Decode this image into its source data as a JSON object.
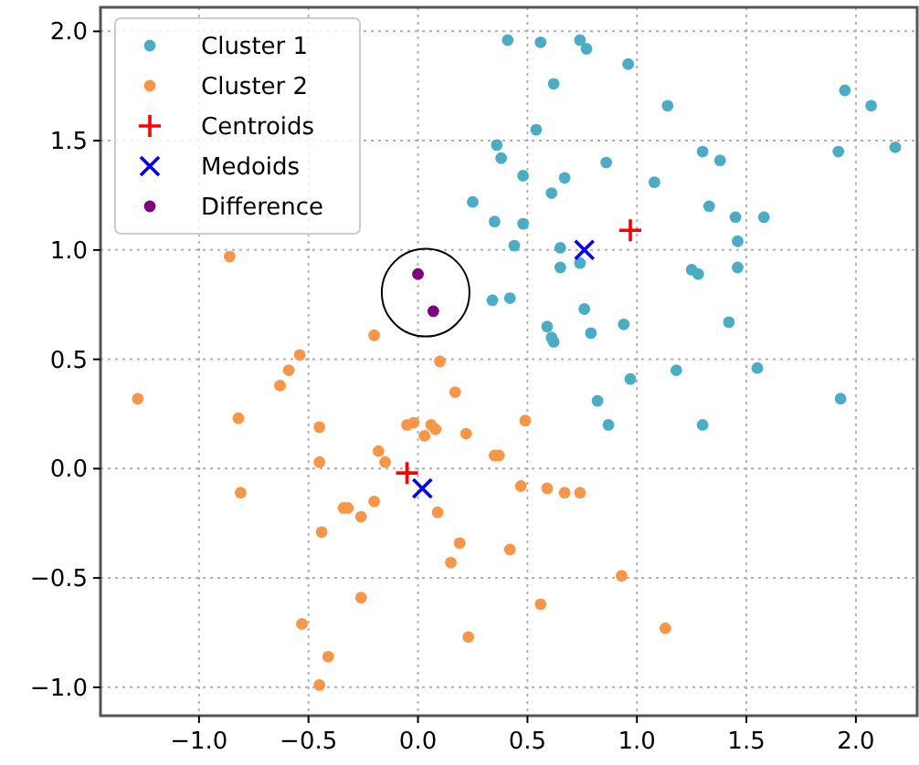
{
  "chart_data": {
    "type": "scatter",
    "xlim": [
      -1.45,
      2.28
    ],
    "ylim": [
      -1.13,
      2.11
    ],
    "xticks": [
      {
        "value": -1,
        "label": "−1.0"
      },
      {
        "value": -0.5,
        "label": "−0.5"
      },
      {
        "value": 0,
        "label": "0.0"
      },
      {
        "value": 0.5,
        "label": "0.5"
      },
      {
        "value": 1,
        "label": "1.0"
      },
      {
        "value": 1.5,
        "label": "1.5"
      },
      {
        "value": 2,
        "label": "2.0"
      }
    ],
    "yticks": [
      {
        "value": -1,
        "label": "−1.0"
      },
      {
        "value": -0.5,
        "label": "−0.5"
      },
      {
        "value": 0,
        "label": "0.0"
      },
      {
        "value": 0.5,
        "label": "0.5"
      },
      {
        "value": 1,
        "label": "1.0"
      },
      {
        "value": 1.5,
        "label": "1.5"
      },
      {
        "value": 2,
        "label": "2.0"
      }
    ],
    "grid": true,
    "legend": "top left",
    "series": [
      {
        "name": "Cluster 1",
        "color": "#4bacc6",
        "marker": "circle",
        "x": [
          0.41,
          0.56,
          0.74,
          0.77,
          0.96,
          0.62,
          1.95,
          2.07,
          1.14,
          0.54,
          0.36,
          0.38,
          1.3,
          1.38,
          1.92,
          2.18,
          0.86,
          0.48,
          0.67,
          1.08,
          0.61,
          1.33,
          1.45,
          1.58,
          0.35,
          0.48,
          1.46,
          0.44,
          0.65,
          0.74,
          0.65,
          1.46,
          1.25,
          1.28,
          0.42,
          0.34,
          0.76,
          0.59,
          0.61,
          0.62,
          0.79,
          0.94,
          1.42,
          0.82,
          0.97,
          1.18,
          1.55,
          0.87,
          1.3,
          1.93,
          0.25
        ],
        "values": [
          1.96,
          1.95,
          1.96,
          1.92,
          1.85,
          1.76,
          1.73,
          1.66,
          1.66,
          1.55,
          1.48,
          1.42,
          1.45,
          1.41,
          1.45,
          1.47,
          1.4,
          1.34,
          1.33,
          1.31,
          1.26,
          1.2,
          1.15,
          1.15,
          1.13,
          1.12,
          1.04,
          1.02,
          1.01,
          0.94,
          0.92,
          0.92,
          0.91,
          0.89,
          0.78,
          0.77,
          0.73,
          0.65,
          0.6,
          0.58,
          0.62,
          0.66,
          0.67,
          0.31,
          0.41,
          0.45,
          0.46,
          0.2,
          0.2,
          0.32,
          1.22
        ]
      },
      {
        "name": "Cluster 2",
        "color": "#f79646",
        "marker": "circle",
        "x": [
          -0.86,
          -0.2,
          -0.54,
          0.1,
          -0.59,
          -0.63,
          -1.28,
          0.17,
          -0.82,
          -0.45,
          -0.05,
          -0.02,
          0.06,
          0.08,
          0.03,
          0.22,
          -0.18,
          -0.15,
          -0.45,
          -0.81,
          -0.34,
          -0.32,
          -0.2,
          -0.26,
          0.09,
          -0.44,
          0.19,
          0.15,
          -0.26,
          -0.53,
          0.23,
          -0.41,
          -0.45,
          0.42,
          0.35,
          0.37,
          0.49,
          0.47,
          0.59,
          0.67,
          0.74,
          0.93,
          0.56,
          1.13
        ],
        "values": [
          0.97,
          0.61,
          0.52,
          0.49,
          0.45,
          0.38,
          0.32,
          0.35,
          0.23,
          0.19,
          0.2,
          0.21,
          0.2,
          0.18,
          0.15,
          0.16,
          0.08,
          0.03,
          0.03,
          -0.11,
          -0.18,
          -0.18,
          -0.15,
          -0.22,
          -0.2,
          -0.29,
          -0.34,
          -0.43,
          -0.59,
          -0.71,
          -0.77,
          -0.86,
          -0.99,
          -0.37,
          0.06,
          0.06,
          0.22,
          -0.08,
          -0.09,
          -0.11,
          -0.11,
          -0.49,
          -0.62,
          -0.73
        ]
      },
      {
        "name": "Centroids",
        "color": "#ff0000",
        "marker": "plus",
        "x": [
          0.97,
          -0.05
        ],
        "values": [
          1.09,
          -0.02
        ]
      },
      {
        "name": "Medoids",
        "color": "#0000ff",
        "marker": "cross",
        "x": [
          0.76,
          0.02
        ],
        "values": [
          1.0,
          -0.09
        ]
      },
      {
        "name": "Difference",
        "color": "#800080",
        "marker": "circle",
        "x": [
          0.0,
          0.07
        ],
        "values": [
          0.89,
          0.72
        ]
      }
    ]
  }
}
